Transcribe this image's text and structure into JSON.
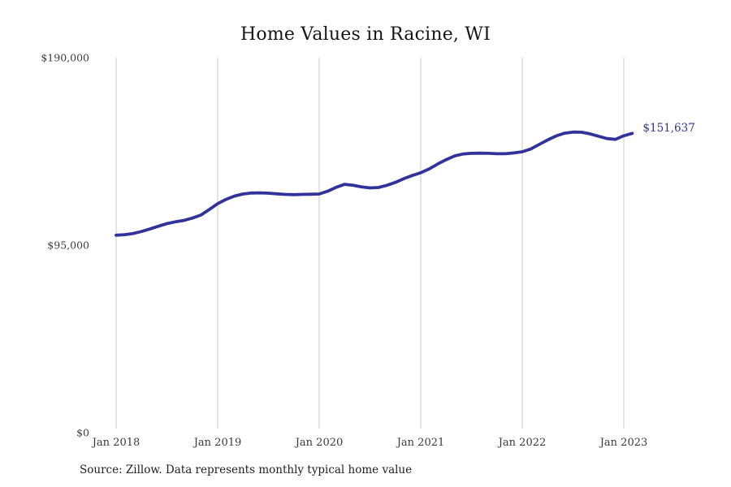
{
  "title": "Home Values in Racine, WI",
  "source_note": "Source: Zillow. Data represents monthly typical home value",
  "colors": {
    "line": "#32329b",
    "end_label": "#32329b",
    "gridline": "#c9c9c9",
    "tick_label": "#3a3a3a",
    "title": "#151515",
    "background": "#ffffff"
  },
  "chart_data": {
    "type": "line",
    "title": "Home Values in Racine, WI",
    "xlabel": "",
    "ylabel": "",
    "ylim": [
      0,
      190000
    ],
    "grid": "vertical-only",
    "legend": "none",
    "y_ticks": [
      {
        "value": 0,
        "label": "$0"
      },
      {
        "value": 95000,
        "label": "$95,000"
      },
      {
        "value": 190000,
        "label": "$190,000"
      }
    ],
    "x_tick_labels": [
      "Jan 2018",
      "Jan 2019",
      "Jan 2020",
      "Jan 2021",
      "Jan 2022",
      "Jan 2023"
    ],
    "end_label": "$151,637",
    "end_value": 151637,
    "months": [
      "2018-01",
      "2018-02",
      "2018-03",
      "2018-04",
      "2018-05",
      "2018-06",
      "2018-07",
      "2018-08",
      "2018-09",
      "2018-10",
      "2018-11",
      "2018-12",
      "2019-01",
      "2019-02",
      "2019-03",
      "2019-04",
      "2019-05",
      "2019-06",
      "2019-07",
      "2019-08",
      "2019-09",
      "2019-10",
      "2019-11",
      "2019-12",
      "2020-01",
      "2020-02",
      "2020-03",
      "2020-04",
      "2020-05",
      "2020-06",
      "2020-07",
      "2020-08",
      "2020-09",
      "2020-10",
      "2020-11",
      "2020-12",
      "2021-01",
      "2021-02",
      "2021-03",
      "2021-04",
      "2021-05",
      "2021-06",
      "2021-07",
      "2021-08",
      "2021-09",
      "2021-10",
      "2021-11",
      "2021-12",
      "2022-01",
      "2022-02",
      "2022-03",
      "2022-04",
      "2022-05",
      "2022-06",
      "2022-07",
      "2022-08",
      "2022-09",
      "2022-10",
      "2022-11",
      "2022-12",
      "2023-01",
      "2023-02"
    ],
    "values": [
      100000,
      100300,
      100900,
      101900,
      103200,
      104600,
      105900,
      106800,
      107500,
      108700,
      110200,
      113000,
      116000,
      118200,
      119900,
      120900,
      121400,
      121500,
      121300,
      121000,
      120700,
      120600,
      120700,
      120800,
      120900,
      122300,
      124300,
      125800,
      125300,
      124500,
      124000,
      124200,
      125300,
      126800,
      128700,
      130300,
      131700,
      133600,
      136100,
      138300,
      140200,
      141200,
      141500,
      141600,
      141500,
      141300,
      141300,
      141700,
      142300,
      143700,
      146000,
      148300,
      150300,
      151700,
      152300,
      152200,
      151400,
      150200,
      149000,
      148600,
      150400,
      151637
    ]
  }
}
